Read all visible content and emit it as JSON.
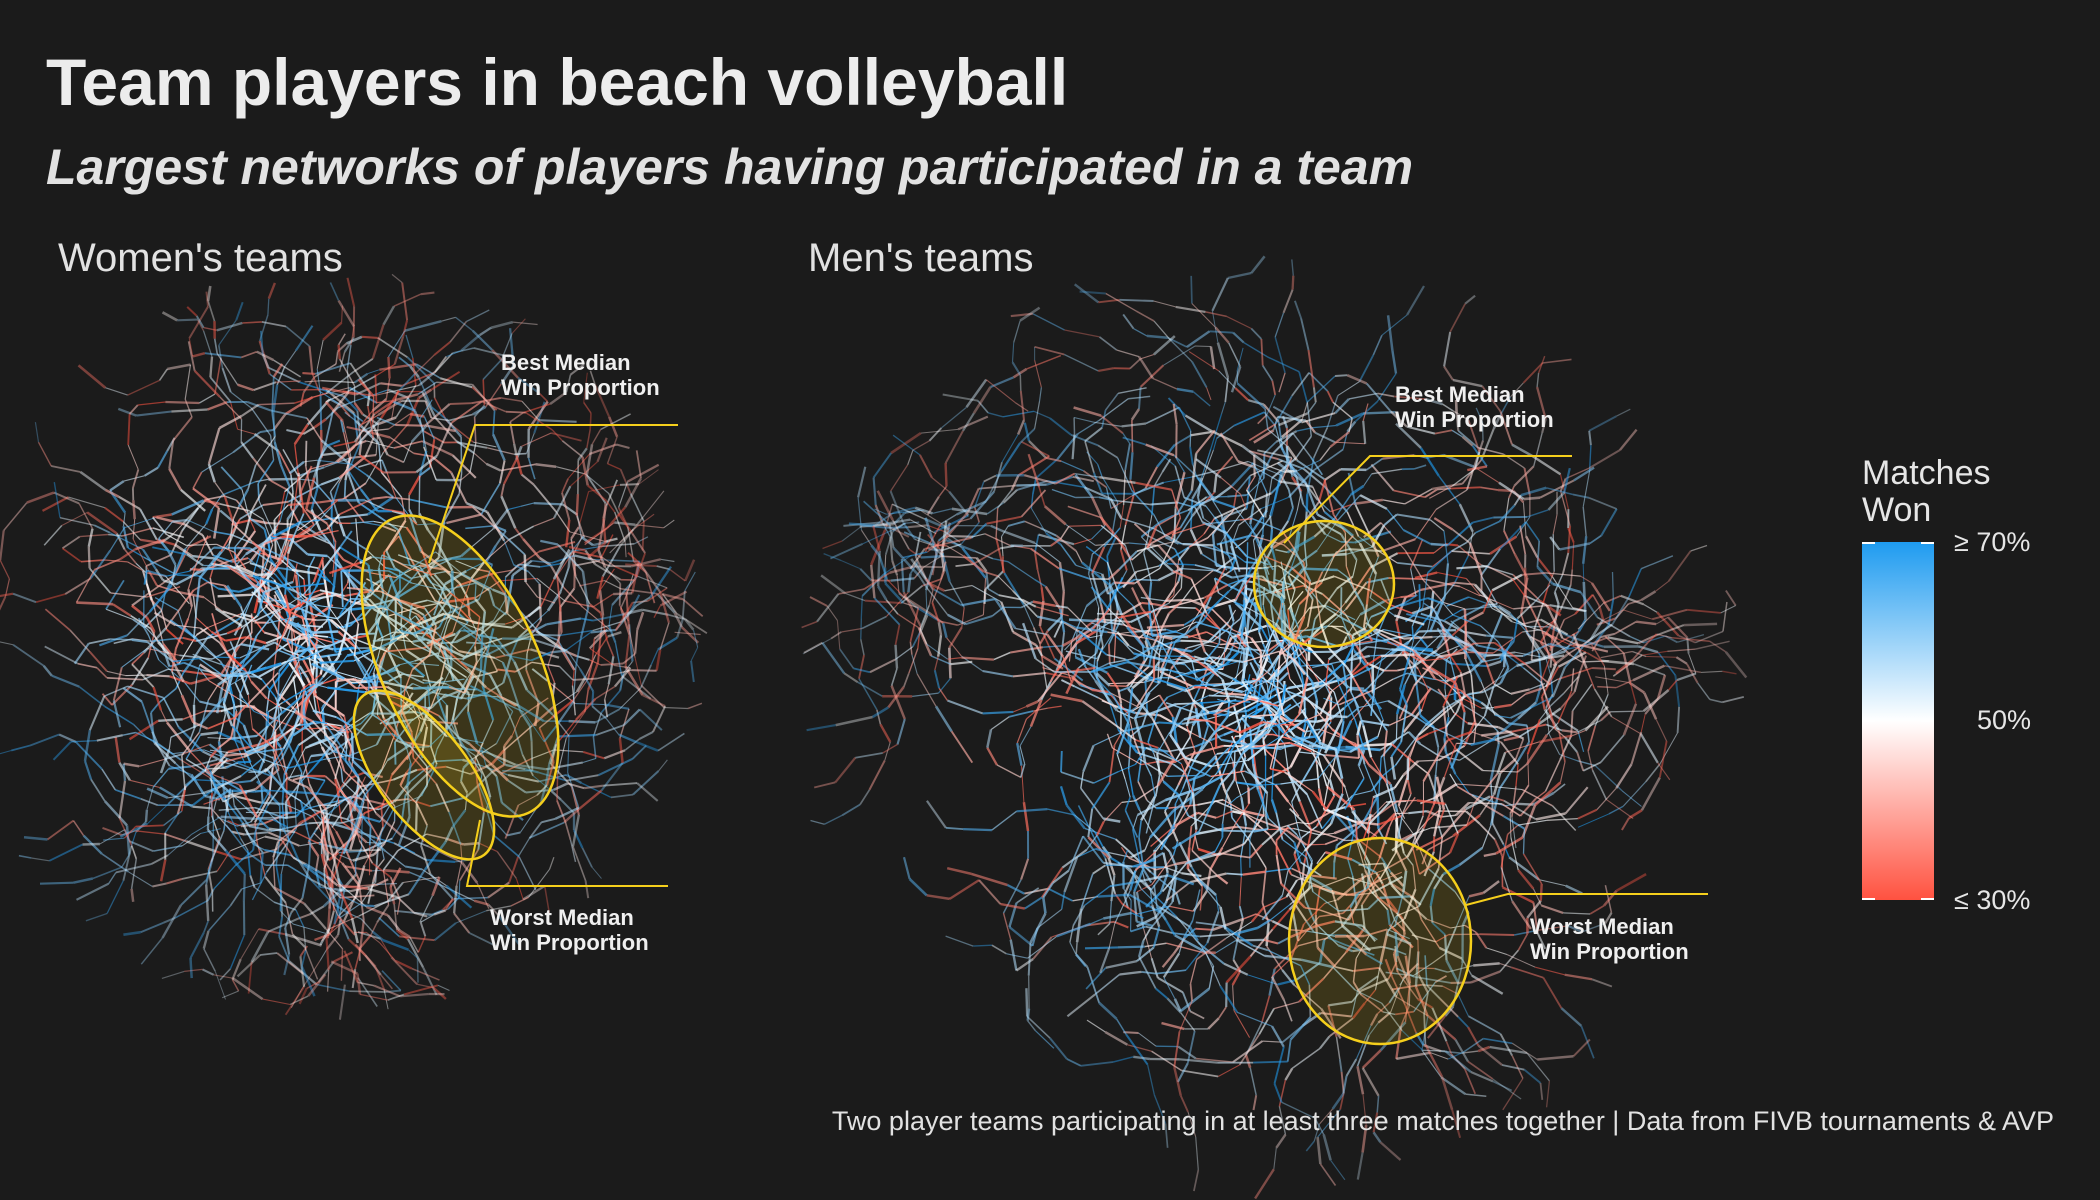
{
  "title": "Team players in beach volleyball",
  "subtitle": "Largest networks of players having participated in a team",
  "panels": {
    "women": {
      "title": "Women's teams",
      "best_label": "Best Median\nWin Proportion",
      "worst_label": "Worst Median\nWin Proportion"
    },
    "men": {
      "title": "Men's teams",
      "best_label": "Best Median\nWin Proportion",
      "worst_label": "Worst Median\nWin Proportion"
    }
  },
  "legend": {
    "title": "Matches\nWon",
    "ticks": [
      "≥ 70%",
      "50%",
      "≤ 30%"
    ],
    "colors": {
      "high": "#1e9bf0",
      "mid": "#ffffff",
      "low": "#ff5240"
    }
  },
  "annotation_color": "#f5cf1c",
  "caption": "Two player teams participating in at least three matches together | Data from FIVB tournaments & AVP"
}
